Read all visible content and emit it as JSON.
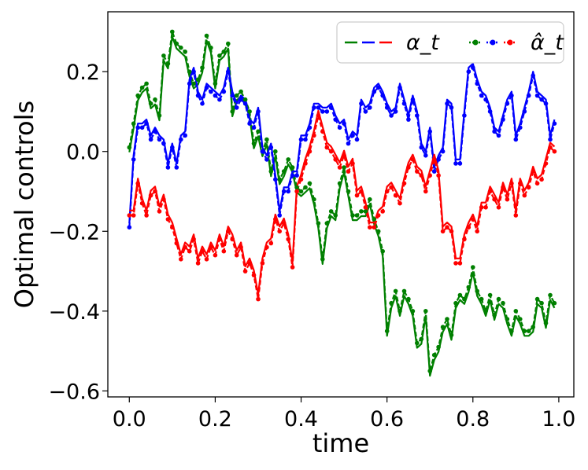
{
  "chart_data": {
    "type": "line",
    "xlabel": "time",
    "ylabel": "Optimal controls",
    "xlim": [
      -0.05,
      1.035
    ],
    "ylim": [
      -0.615,
      0.35
    ],
    "xticks": [
      0.0,
      0.2,
      0.4,
      0.6,
      0.8,
      1.0
    ],
    "xtick_labels": [
      "0.0",
      "0.2",
      "0.4",
      "0.6",
      "0.8",
      "1.0"
    ],
    "yticks": [
      -0.6,
      -0.4,
      -0.2,
      0.0,
      0.2
    ],
    "ytick_labels": [
      "−0.6",
      "−0.4",
      "−0.2",
      "0.0",
      "0.2"
    ],
    "grid": false,
    "legend": {
      "placement": "top-right",
      "entries": [
        {
          "label": "α_t",
          "style": "dashed"
        },
        {
          "label": "α̂_t",
          "style": "dotted-marker"
        }
      ]
    },
    "x": [
      0.0,
      0.01,
      0.02,
      0.03,
      0.04,
      0.05,
      0.06,
      0.07,
      0.08,
      0.09,
      0.1,
      0.11,
      0.12,
      0.13,
      0.14,
      0.15,
      0.16,
      0.17,
      0.18,
      0.19,
      0.2,
      0.21,
      0.22,
      0.23,
      0.24,
      0.25,
      0.26,
      0.27,
      0.28,
      0.29,
      0.3,
      0.31,
      0.32,
      0.33,
      0.34,
      0.35,
      0.36,
      0.37,
      0.38,
      0.39,
      0.4,
      0.41,
      0.42,
      0.43,
      0.44,
      0.45,
      0.46,
      0.47,
      0.48,
      0.49,
      0.5,
      0.51,
      0.52,
      0.53,
      0.54,
      0.55,
      0.56,
      0.57,
      0.58,
      0.59,
      0.6,
      0.61,
      0.62,
      0.63,
      0.64,
      0.65,
      0.66,
      0.67,
      0.68,
      0.69,
      0.7,
      0.71,
      0.72,
      0.73,
      0.74,
      0.75,
      0.76,
      0.77,
      0.78,
      0.79,
      0.8,
      0.81,
      0.82,
      0.83,
      0.84,
      0.85,
      0.86,
      0.87,
      0.88,
      0.89,
      0.9,
      0.91,
      0.92,
      0.93,
      0.94,
      0.95,
      0.96,
      0.97,
      0.98,
      0.99
    ],
    "series": [
      {
        "color": "#008000",
        "values": [
          0.01,
          0.07,
          0.14,
          0.16,
          0.17,
          0.12,
          0.13,
          0.09,
          0.24,
          0.22,
          0.3,
          0.27,
          0.26,
          0.25,
          0.2,
          0.17,
          0.18,
          0.21,
          0.29,
          0.26,
          0.17,
          0.24,
          0.25,
          0.27,
          0.1,
          0.14,
          0.15,
          0.13,
          0.1,
          0.02,
          0.05,
          0.0,
          0.03,
          -0.05,
          0.0,
          -0.07,
          -0.05,
          -0.02,
          -0.04,
          -0.09,
          -0.1,
          -0.09,
          -0.08,
          -0.12,
          -0.18,
          -0.27,
          -0.18,
          -0.15,
          -0.16,
          -0.08,
          -0.04,
          -0.1,
          -0.16,
          -0.16,
          -0.15,
          -0.15,
          -0.12,
          -0.17,
          -0.2,
          -0.25,
          -0.45,
          -0.38,
          -0.35,
          -0.4,
          -0.35,
          -0.37,
          -0.4,
          -0.48,
          -0.47,
          -0.4,
          -0.55,
          -0.51,
          -0.49,
          -0.44,
          -0.42,
          -0.46,
          -0.38,
          -0.36,
          -0.37,
          -0.34,
          -0.29,
          -0.35,
          -0.37,
          -0.4,
          -0.36,
          -0.41,
          -0.37,
          -0.38,
          -0.42,
          -0.45,
          -0.4,
          -0.42,
          -0.45,
          -0.45,
          -0.44,
          -0.37,
          -0.38,
          -0.43,
          -0.36,
          -0.38
        ]
      },
      {
        "color": "#0000ff",
        "values": [
          -0.19,
          -0.02,
          0.06,
          0.06,
          0.07,
          0.03,
          0.05,
          0.03,
          0.02,
          -0.04,
          0.01,
          -0.04,
          0.03,
          0.04,
          0.17,
          0.2,
          0.14,
          0.12,
          0.16,
          0.15,
          0.14,
          0.13,
          0.15,
          0.2,
          0.14,
          0.11,
          0.13,
          0.12,
          0.07,
          0.06,
          0.1,
          0.0,
          -0.02,
          0.01,
          -0.07,
          -0.16,
          -0.1,
          -0.1,
          -0.06,
          -0.06,
          0.03,
          0.03,
          0.06,
          0.11,
          0.11,
          0.1,
          0.1,
          0.11,
          0.08,
          0.06,
          0.07,
          0.02,
          0.04,
          0.03,
          0.12,
          0.1,
          0.11,
          0.15,
          0.16,
          0.14,
          0.11,
          0.09,
          0.1,
          0.16,
          0.12,
          0.08,
          0.13,
          0.09,
          0.01,
          -0.01,
          0.05,
          -0.05,
          -0.02,
          0.0,
          0.12,
          0.11,
          -0.03,
          -0.03,
          0.09,
          0.2,
          0.21,
          0.17,
          0.14,
          0.13,
          0.1,
          0.05,
          0.04,
          0.08,
          0.12,
          0.14,
          0.03,
          0.06,
          0.1,
          0.14,
          0.19,
          0.14,
          0.13,
          0.12,
          0.03,
          0.07
        ]
      },
      {
        "color": "#ff0000",
        "values": [
          -0.16,
          -0.16,
          -0.08,
          -0.13,
          -0.16,
          -0.11,
          -0.1,
          -0.15,
          -0.12,
          -0.17,
          -0.19,
          -0.23,
          -0.27,
          -0.24,
          -0.25,
          -0.22,
          -0.28,
          -0.25,
          -0.27,
          -0.24,
          -0.26,
          -0.22,
          -0.25,
          -0.2,
          -0.22,
          -0.26,
          -0.24,
          -0.3,
          -0.28,
          -0.31,
          -0.37,
          -0.28,
          -0.24,
          -0.23,
          -0.17,
          -0.2,
          -0.18,
          -0.22,
          -0.29,
          -0.1,
          -0.07,
          -0.03,
          0.0,
          0.04,
          0.09,
          0.05,
          0.01,
          0.0,
          -0.02,
          -0.04,
          -0.01,
          -0.05,
          -0.03,
          -0.11,
          -0.1,
          -0.14,
          -0.19,
          -0.19,
          -0.16,
          -0.15,
          -0.1,
          -0.09,
          -0.11,
          -0.13,
          -0.08,
          -0.04,
          -0.02,
          -0.05,
          -0.06,
          -0.1,
          -0.06,
          -0.02,
          -0.06,
          -0.2,
          -0.19,
          -0.2,
          -0.28,
          -0.28,
          -0.22,
          -0.19,
          -0.17,
          -0.2,
          -0.14,
          -0.14,
          -0.1,
          -0.12,
          -0.14,
          -0.09,
          -0.12,
          -0.08,
          -0.16,
          -0.08,
          -0.11,
          -0.09,
          -0.05,
          -0.08,
          -0.07,
          -0.03,
          0.01,
          0.0
        ]
      }
    ]
  }
}
